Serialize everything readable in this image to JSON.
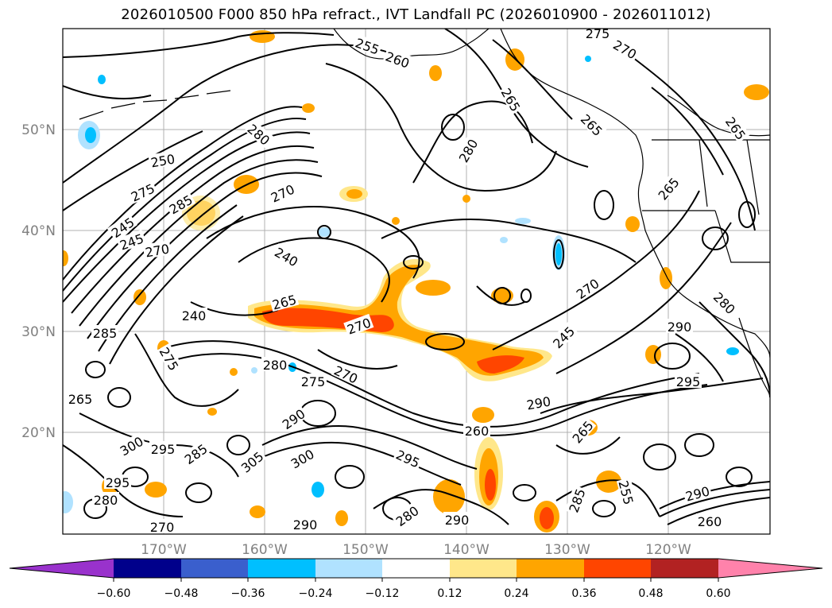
{
  "title": "2026010500 F000 850 hPa refract., IVT Landfall PC (2026010900 - 2026011012)",
  "map": {
    "lat_labels": [
      "50°N",
      "40°N",
      "30°N",
      "20°N"
    ],
    "lon_labels": [
      "170°W",
      "160°W",
      "150°W",
      "140°W",
      "130°W",
      "120°W"
    ],
    "contour_labels": [
      "275",
      "255",
      "260",
      "270",
      "265",
      "265",
      "265",
      "280",
      "250",
      "270",
      "280",
      "275",
      "285",
      "245",
      "245",
      "240",
      "270",
      "265",
      "270",
      "240",
      "280",
      "285",
      "275",
      "280",
      "270",
      "275",
      "270",
      "290",
      "295",
      "290",
      "300",
      "295",
      "285",
      "295",
      "290",
      "300",
      "305",
      "290",
      "280",
      "290",
      "285",
      "255",
      "290",
      "260",
      "265",
      "265",
      "245",
      "265",
      "280",
      "295",
      "270",
      "260"
    ]
  },
  "colorbar": {
    "tick_labels": [
      "−0.60",
      "−0.48",
      "−0.36",
      "−0.24",
      "−0.12",
      "0.12",
      "0.24",
      "0.36",
      "0.48",
      "0.60"
    ],
    "colors": [
      "#9932cc",
      "#00008b",
      "#3a5fcd",
      "#00bfff",
      "#b0e2ff",
      "#ffffff",
      "#ffe78a",
      "#ffa500",
      "#ff4500",
      "#b22222",
      "#ff82ab"
    ]
  },
  "colors": {
    "land_line": "#000000",
    "grid": "#b0b0b0",
    "neg_fill": "#00bfff",
    "pos_low": "#ffe78a",
    "pos_mid": "#ffa500",
    "pos_high": "#ff4500"
  }
}
